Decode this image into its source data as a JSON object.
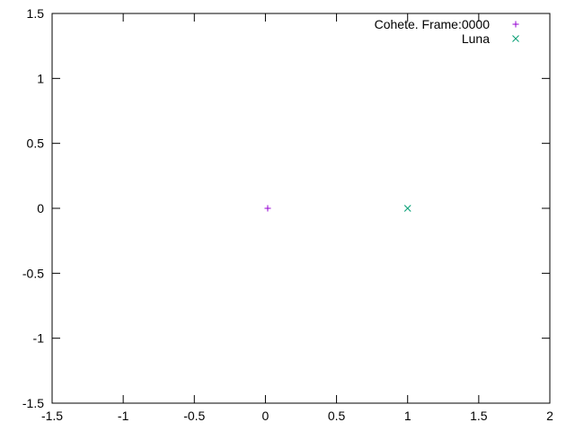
{
  "chart_data": {
    "type": "scatter",
    "xlim": [
      -1.5,
      2
    ],
    "ylim": [
      -1.5,
      1.5
    ],
    "x_ticks": [
      -1.5,
      -1,
      -0.5,
      0,
      0.5,
      1,
      1.5,
      2
    ],
    "x_tick_labels": [
      "-1.5",
      "-1",
      "-0.5",
      "0",
      "0.5",
      "1",
      "1.5",
      "2"
    ],
    "y_ticks": [
      -1.5,
      -1,
      -0.5,
      0,
      0.5,
      1,
      1.5
    ],
    "y_tick_labels": [
      "-1.5",
      "-1",
      "-0.5",
      "0",
      "0.5",
      "1",
      "1.5"
    ],
    "grid": false,
    "legend_position": "top-right",
    "series": [
      {
        "name": "Cohete. Frame:0000",
        "marker": "plus",
        "color": "#9400d3",
        "points": [
          {
            "x": 0.016,
            "y": 0
          }
        ]
      },
      {
        "name": "Luna",
        "marker": "cross",
        "color": "#009e73",
        "points": [
          {
            "x": 1,
            "y": 0
          }
        ]
      }
    ]
  }
}
